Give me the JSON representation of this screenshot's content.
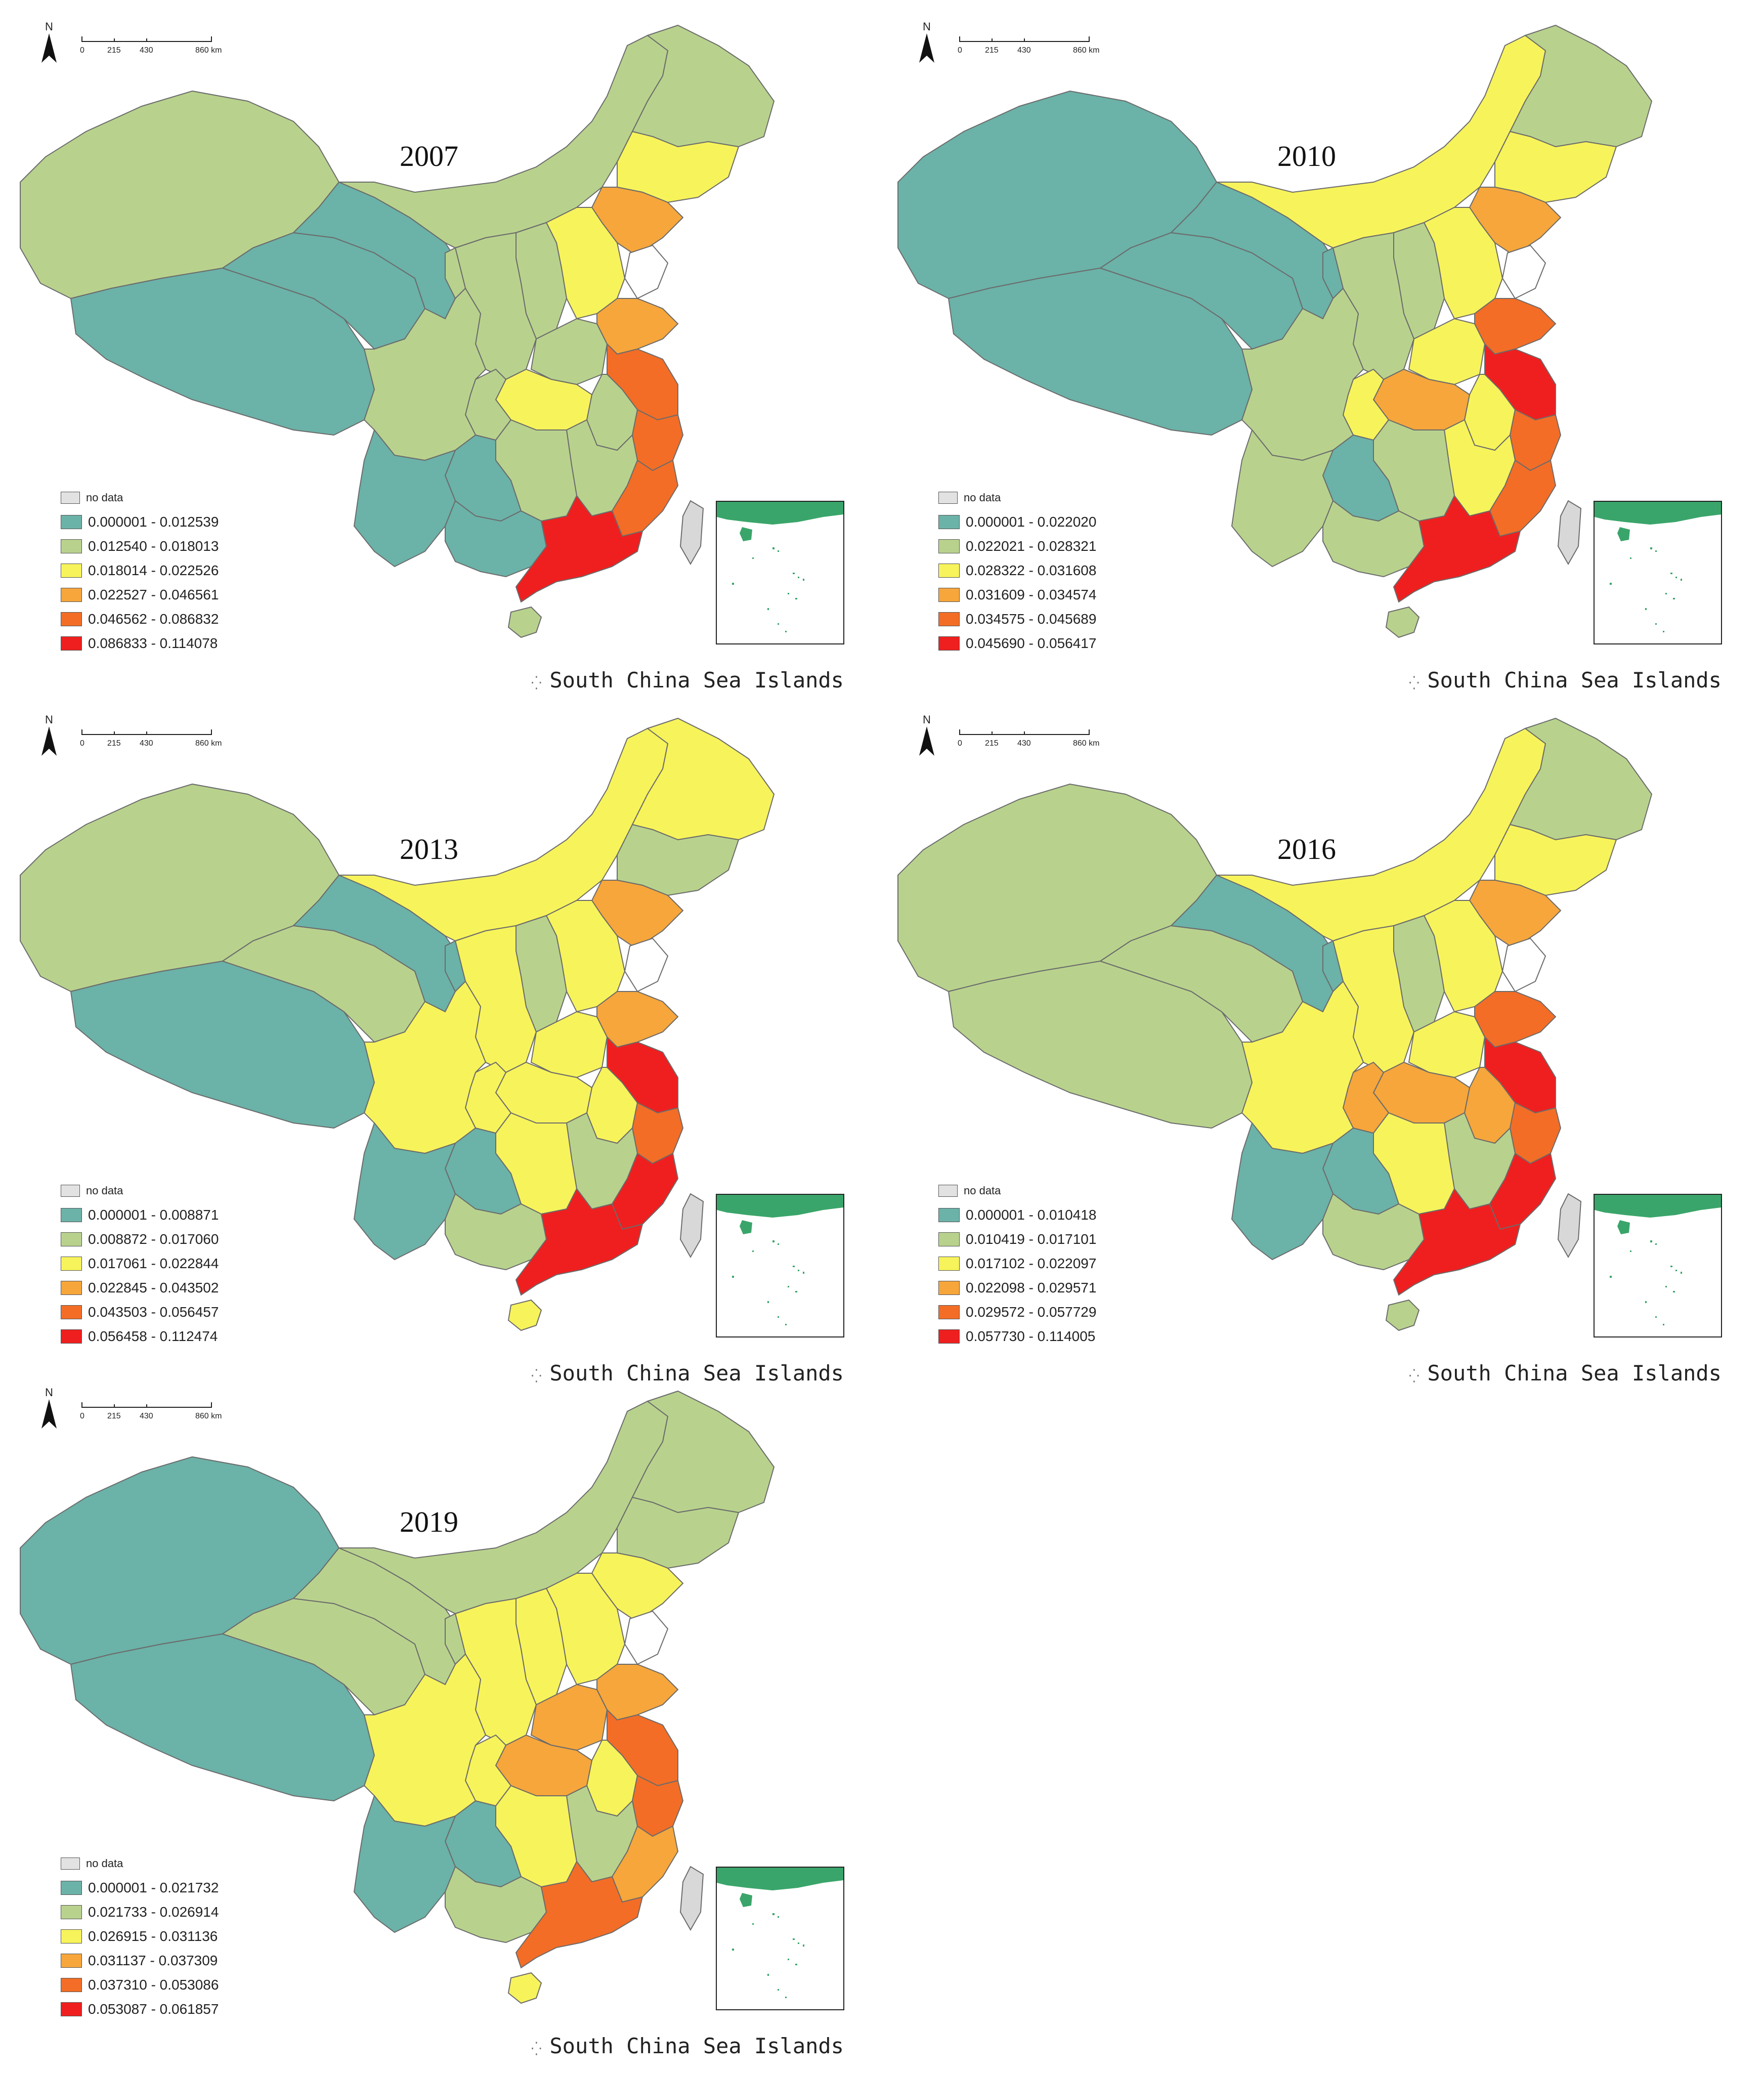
{
  "colors": {
    "c1": "#6bb2a8",
    "c2": "#b8d28d",
    "c3": "#f7f35b",
    "c4": "#f6a63b",
    "c5": "#f36d26",
    "c6": "#ef1f1f",
    "nodata": "#e2e2e2",
    "coast": "#6b6b6b",
    "taiwan": "#d8d8d8",
    "inset_land": "#3aa56a"
  },
  "common": {
    "north": "N",
    "scale_ticks": [
      "0",
      "215",
      "430",
      "860 km"
    ],
    "no_data": "no data",
    "scs_label": "South China Sea Islands"
  },
  "maps": [
    {
      "year": "2007",
      "legend": [
        "0.000001 - 0.012539",
        "0.012540 - 0.018013",
        "0.018014 - 0.022526",
        "0.022527 - 0.046561",
        "0.046562 - 0.086832",
        "0.086833 - 0.114078"
      ]
    },
    {
      "year": "2010",
      "legend": [
        "0.000001 - 0.022020",
        "0.022021 - 0.028321",
        "0.028322 - 0.031608",
        "0.031609 - 0.034574",
        "0.034575 - 0.045689",
        "0.045690 - 0.056417"
      ]
    },
    {
      "year": "2013",
      "legend": [
        "0.000001 - 0.008871",
        "0.008872 - 0.017060",
        "0.017061 - 0.022844",
        "0.022845 - 0.043502",
        "0.043503 - 0.056457",
        "0.056458 - 0.112474"
      ]
    },
    {
      "year": "2016",
      "legend": [
        "0.000001 - 0.010418",
        "0.010419 - 0.017101",
        "0.017102 - 0.022097",
        "0.022098 - 0.029571",
        "0.029572 - 0.057729",
        "0.057730 - 0.114005"
      ]
    },
    {
      "year": "2019",
      "legend": [
        "0.000001 - 0.021732",
        "0.021733 - 0.026914",
        "0.026915 - 0.031136",
        "0.031137 - 0.037309",
        "0.037310 - 0.053086",
        "0.053087 - 0.061857"
      ]
    }
  ],
  "region_classes": [
    {
      "xinjiang": 2,
      "tibet": 1,
      "qinghai": 1,
      "gansu": 1,
      "inner_mongolia": 2,
      "heilongjiang": 2,
      "jilin": 3,
      "liaoning": 4,
      "beijing": 5,
      "hebei": 3,
      "shandong": 4,
      "jiangsu": 5,
      "zhejiang": 5,
      "fujian": 5,
      "guangdong": 6,
      "hainan": 2,
      "sichuan": 2,
      "yunnan": 1,
      "guizhou": 1,
      "guangxi": 1,
      "hunan": 2,
      "hubei": 3,
      "henan": 2,
      "anhui": 2,
      "jiangxi": 2,
      "shaanxi": 2,
      "shanxi": 2,
      "ningxia": 2,
      "chongqing": 2
    },
    {
      "xinjiang": 1,
      "tibet": 1,
      "qinghai": 1,
      "gansu": 1,
      "inner_mongolia": 3,
      "heilongjiang": 2,
      "jilin": 3,
      "liaoning": 4,
      "beijing": 6,
      "hebei": 3,
      "shandong": 5,
      "jiangsu": 6,
      "zhejiang": 5,
      "fujian": 5,
      "guangdong": 6,
      "hainan": 2,
      "sichuan": 2,
      "yunnan": 2,
      "guizhou": 1,
      "guangxi": 2,
      "hunan": 2,
      "hubei": 4,
      "henan": 3,
      "anhui": 3,
      "jiangxi": 3,
      "shaanxi": 2,
      "shanxi": 2,
      "ningxia": 1,
      "chongqing": 3
    },
    {
      "xinjiang": 2,
      "tibet": 1,
      "qinghai": 2,
      "gansu": 1,
      "inner_mongolia": 3,
      "heilongjiang": 3,
      "jilin": 2,
      "liaoning": 4,
      "beijing": 6,
      "hebei": 3,
      "shandong": 4,
      "jiangsu": 6,
      "zhejiang": 5,
      "fujian": 6,
      "guangdong": 6,
      "hainan": 3,
      "sichuan": 3,
      "yunnan": 1,
      "guizhou": 1,
      "guangxi": 2,
      "hunan": 3,
      "hubei": 3,
      "henan": 3,
      "anhui": 3,
      "jiangxi": 2,
      "shaanxi": 3,
      "shanxi": 2,
      "ningxia": 1,
      "chongqing": 3
    },
    {
      "xinjiang": 2,
      "tibet": 2,
      "qinghai": 2,
      "gansu": 1,
      "inner_mongolia": 3,
      "heilongjiang": 2,
      "jilin": 3,
      "liaoning": 4,
      "beijing": 5,
      "hebei": 3,
      "shandong": 5,
      "jiangsu": 6,
      "zhejiang": 5,
      "fujian": 6,
      "guangdong": 6,
      "hainan": 2,
      "sichuan": 3,
      "yunnan": 1,
      "guizhou": 1,
      "guangxi": 2,
      "hunan": 3,
      "hubei": 4,
      "henan": 3,
      "anhui": 4,
      "jiangxi": 2,
      "shaanxi": 3,
      "shanxi": 2,
      "ningxia": 1,
      "chongqing": 4
    },
    {
      "xinjiang": 1,
      "tibet": 1,
      "qinghai": 2,
      "gansu": 2,
      "inner_mongolia": 2,
      "heilongjiang": 2,
      "jilin": 2,
      "liaoning": 3,
      "beijing": 6,
      "hebei": 3,
      "shandong": 4,
      "jiangsu": 5,
      "zhejiang": 5,
      "fujian": 4,
      "guangdong": 5,
      "hainan": 3,
      "sichuan": 3,
      "yunnan": 1,
      "guizhou": 1,
      "guangxi": 2,
      "hunan": 3,
      "hubei": 4,
      "henan": 4,
      "anhui": 3,
      "jiangxi": 2,
      "shaanxi": 3,
      "shanxi": 3,
      "ningxia": 2,
      "chongqing": 3
    }
  ]
}
